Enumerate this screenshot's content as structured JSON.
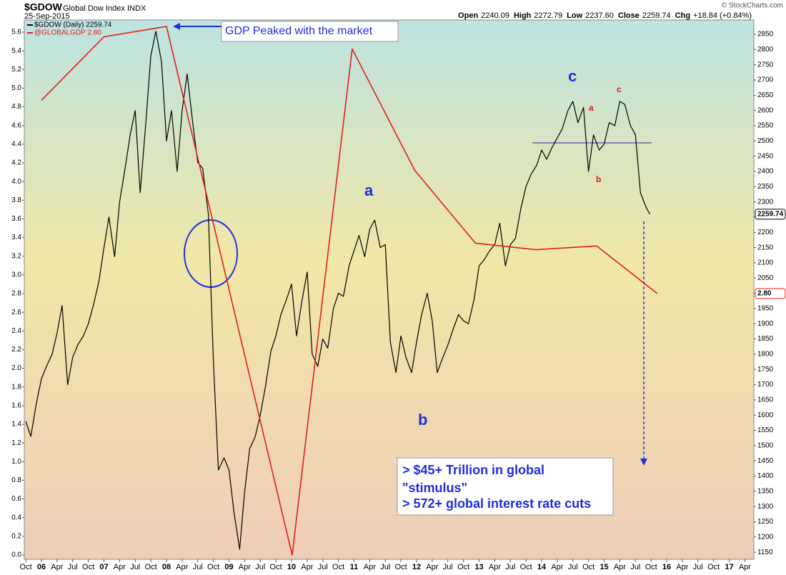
{
  "chart_data": {
    "type": "line",
    "symbol": "$GDOW",
    "subtitle": "Global Dow Index",
    "exchange": "INDX",
    "date": "25-Sep-2015",
    "credit": "© StockCharts.com",
    "quote": [
      {
        "label": "Open",
        "value": "2240.09"
      },
      {
        "label": "High",
        "value": "2272.79"
      },
      {
        "label": "Low",
        "value": "2237.60"
      },
      {
        "label": "Close",
        "value": "2259.74"
      },
      {
        "label": "Chg",
        "value": "+18.84 (+0.84%)"
      }
    ],
    "grid": false,
    "xlim": [
      2005.726,
      2017.394
    ],
    "ylim": [
      -0.046,
      5.73
    ],
    "y2lim": [
      1127,
      2897
    ],
    "xticks": [
      {
        "value": 2005.75,
        "label": "Oct"
      },
      {
        "value": 2006,
        "label": "06"
      },
      {
        "value": 2006.25,
        "label": "Apr"
      },
      {
        "value": 2006.5,
        "label": "Jul"
      },
      {
        "value": 2006.75,
        "label": "Oct"
      },
      {
        "value": 2007,
        "label": "07"
      },
      {
        "value": 2007.25,
        "label": "Apr"
      },
      {
        "value": 2007.5,
        "label": "Jul"
      },
      {
        "value": 2007.75,
        "label": "Oct"
      },
      {
        "value": 2008,
        "label": "08"
      },
      {
        "value": 2008.25,
        "label": "Apr"
      },
      {
        "value": 2008.5,
        "label": "Jul"
      },
      {
        "value": 2008.75,
        "label": "Oct"
      },
      {
        "value": 2009,
        "label": "09"
      },
      {
        "value": 2009.25,
        "label": "Apr"
      },
      {
        "value": 2009.5,
        "label": "Jul"
      },
      {
        "value": 2009.75,
        "label": "Oct"
      },
      {
        "value": 2010,
        "label": "10"
      },
      {
        "value": 2010.25,
        "label": "Apr"
      },
      {
        "value": 2010.5,
        "label": "Jul"
      },
      {
        "value": 2010.75,
        "label": "Oct"
      },
      {
        "value": 2011,
        "label": "11"
      },
      {
        "value": 2011.25,
        "label": "Apr"
      },
      {
        "value": 2011.5,
        "label": "Jul"
      },
      {
        "value": 2011.75,
        "label": "Oct"
      },
      {
        "value": 2012,
        "label": "12"
      },
      {
        "value": 2012.25,
        "label": "Apr"
      },
      {
        "value": 2012.5,
        "label": "Jul"
      },
      {
        "value": 2012.75,
        "label": "Oct"
      },
      {
        "value": 2013,
        "label": "13"
      },
      {
        "value": 2013.25,
        "label": "Apr"
      },
      {
        "value": 2013.5,
        "label": "Jul"
      },
      {
        "value": 2013.75,
        "label": "Oct"
      },
      {
        "value": 2014,
        "label": "14"
      },
      {
        "value": 2014.25,
        "label": "Apr"
      },
      {
        "value": 2014.5,
        "label": "Jul"
      },
      {
        "value": 2014.75,
        "label": "Oct"
      },
      {
        "value": 2015,
        "label": "15"
      },
      {
        "value": 2015.25,
        "label": "Apr"
      },
      {
        "value": 2015.5,
        "label": "Jul"
      },
      {
        "value": 2015.75,
        "label": "Oct"
      },
      {
        "value": 2016,
        "label": "16"
      },
      {
        "value": 2016.25,
        "label": "Apr"
      },
      {
        "value": 2016.5,
        "label": "Jul"
      },
      {
        "value": 2016.75,
        "label": "Oct"
      },
      {
        "value": 2017,
        "label": "17"
      },
      {
        "value": 2017.25,
        "label": "Apr"
      }
    ],
    "yticks": [
      {
        "value": 0,
        "label": "0.0"
      },
      0.2,
      0.4,
      0.6,
      0.8,
      {
        "value": 1,
        "label": "1.0"
      },
      1.2,
      1.4,
      1.6,
      1.8,
      {
        "value": 2,
        "label": "2.0"
      },
      2.2,
      2.4,
      2.6,
      2.8,
      {
        "value": 3,
        "label": "3.0"
      },
      3.2,
      3.4,
      3.6,
      3.8,
      {
        "value": 4,
        "label": "4.0"
      },
      4.2,
      4.4,
      4.6,
      4.8,
      {
        "value": 5,
        "label": "5.0"
      },
      5.2,
      5.4,
      5.6
    ],
    "y2ticks": [
      1150,
      1200,
      1250,
      1300,
      1350,
      1400,
      1450,
      1500,
      1550,
      1600,
      1650,
      1700,
      1750,
      1800,
      1850,
      1900,
      1950,
      2000,
      2050,
      2100,
      2150,
      2200,
      2250,
      2300,
      2350,
      2400,
      2450,
      2500,
      2550,
      2600,
      2650,
      2700,
      2750,
      2800,
      2850
    ],
    "series": [
      {
        "name": "$GDOW (Daily) 2259.74",
        "color": "#000000",
        "axis": "y2",
        "end_label": "2259.74",
        "x": [
          2005.75,
          2005.83,
          2005.92,
          2006.0,
          2006.08,
          2006.17,
          2006.25,
          2006.33,
          2006.42,
          2006.5,
          2006.58,
          2006.67,
          2006.75,
          2006.83,
          2006.92,
          2007.0,
          2007.08,
          2007.17,
          2007.25,
          2007.33,
          2007.42,
          2007.5,
          2007.58,
          2007.67,
          2007.75,
          2007.83,
          2007.92,
          2008.0,
          2008.08,
          2008.17,
          2008.25,
          2008.33,
          2008.42,
          2008.5,
          2008.58,
          2008.67,
          2008.75,
          2008.83,
          2008.92,
          2009.0,
          2009.08,
          2009.17,
          2009.25,
          2009.33,
          2009.42,
          2009.5,
          2009.58,
          2009.67,
          2009.75,
          2009.83,
          2009.92,
          2010.0,
          2010.08,
          2010.17,
          2010.25,
          2010.33,
          2010.42,
          2010.5,
          2010.58,
          2010.67,
          2010.75,
          2010.83,
          2010.92,
          2011.0,
          2011.08,
          2011.17,
          2011.25,
          2011.33,
          2011.42,
          2011.5,
          2011.58,
          2011.67,
          2011.75,
          2011.83,
          2011.92,
          2012.0,
          2012.08,
          2012.17,
          2012.25,
          2012.33,
          2012.42,
          2012.5,
          2012.58,
          2012.67,
          2012.75,
          2012.83,
          2012.92,
          2013.0,
          2013.08,
          2013.17,
          2013.25,
          2013.33,
          2013.42,
          2013.5,
          2013.58,
          2013.67,
          2013.75,
          2013.83,
          2013.92,
          2014.0,
          2014.08,
          2014.17,
          2014.25,
          2014.33,
          2014.42,
          2014.5,
          2014.58,
          2014.67,
          2014.75,
          2014.83,
          2014.92,
          2015.0,
          2015.08,
          2015.17,
          2015.25,
          2015.33,
          2015.42,
          2015.5,
          2015.58,
          2015.67,
          2015.73
        ],
        "values": [
          1580,
          1530,
          1640,
          1720,
          1760,
          1800,
          1870,
          1960,
          1700,
          1790,
          1830,
          1860,
          1900,
          1960,
          2040,
          2150,
          2250,
          2120,
          2300,
          2400,
          2520,
          2600,
          2330,
          2560,
          2780,
          2860,
          2760,
          2500,
          2600,
          2400,
          2600,
          2720,
          2560,
          2430,
          2410,
          2260,
          1780,
          1420,
          1460,
          1420,
          1280,
          1160,
          1350,
          1490,
          1530,
          1600,
          1690,
          1810,
          1860,
          1930,
          1980,
          2030,
          1860,
          1980,
          2070,
          1800,
          1760,
          1850,
          1820,
          1950,
          2000,
          1990,
          2090,
          2140,
          2190,
          2120,
          2210,
          2240,
          2150,
          2160,
          1840,
          1740,
          1860,
          1790,
          1740,
          1840,
          1930,
          2000,
          1910,
          1740,
          1790,
          1830,
          1880,
          1930,
          1910,
          1900,
          1980,
          2090,
          2110,
          2140,
          2160,
          2230,
          2090,
          2160,
          2180,
          2280,
          2350,
          2390,
          2420,
          2470,
          2440,
          2480,
          2510,
          2540,
          2600,
          2630,
          2560,
          2610,
          2400,
          2520,
          2470,
          2490,
          2560,
          2550,
          2630,
          2620,
          2550,
          2520,
          2330,
          2283,
          2259.74
        ]
      },
      {
        "name": "@GLOBALGDP 2.80",
        "color": "#e0201e",
        "axis": "y",
        "end_label": "2.80",
        "x": [
          2006.0,
          2007.0,
          2008.0,
          2010.01,
          2010.97,
          2011.97,
          2012.94,
          2013.91,
          2014.88,
          2015.85
        ],
        "values": [
          4.87,
          5.55,
          5.66,
          0.0,
          5.42,
          4.12,
          3.34,
          3.27,
          3.31,
          2.8
        ]
      }
    ],
    "annotations": [
      "GDP Peaked with the market",
      "a",
      "b",
      "c",
      "a",
      "b",
      "c",
      "> $45+ Trillion in global",
      "\"stimulus\"",
      "> 572+ global interest rate cuts"
    ]
  }
}
